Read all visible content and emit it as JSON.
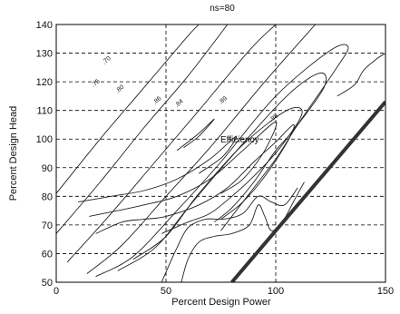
{
  "chart_data": {
    "type": "line",
    "title": "ns=80",
    "xlabel": "Percent Design Power",
    "ylabel": "Percent Design Head",
    "xlim": [
      0,
      150
    ],
    "ylim": [
      50,
      140
    ],
    "xticks": [
      "0",
      "50",
      "100",
      "150"
    ],
    "yticks": [
      "50",
      "60",
      "70",
      "80",
      "90",
      "100",
      "110",
      "120",
      "130",
      "140"
    ],
    "grid": true,
    "annotation": "Efficiency",
    "contour_labels": [
      {
        "text": ".70",
        "x": 22,
        "y": 126,
        "angle": -42
      },
      {
        "text": ".75",
        "x": 17,
        "y": 118,
        "angle": -42
      },
      {
        "text": ".80",
        "x": 28,
        "y": 116,
        "angle": -42
      },
      {
        "text": ".86",
        "x": 45,
        "y": 112,
        "angle": -42
      },
      {
        "text": ".84",
        "x": 55,
        "y": 111,
        "angle": -42
      },
      {
        "text": ".89",
        "x": 75,
        "y": 112,
        "angle": -42
      },
      {
        "text": ".98",
        "x": 98,
        "y": 106,
        "angle": -38
      }
    ],
    "limit_line": [
      [
        80,
        50
      ],
      [
        150,
        113
      ]
    ],
    "contours": [
      [
        [
          0,
          81
        ],
        [
          20,
          100
        ],
        [
          40,
          118
        ],
        [
          60,
          136
        ],
        [
          65,
          140
        ]
      ],
      [
        [
          0,
          67
        ],
        [
          20,
          85
        ],
        [
          40,
          104
        ],
        [
          60,
          122
        ],
        [
          78,
          140
        ]
      ],
      [
        [
          5,
          57
        ],
        [
          25,
          74
        ],
        [
          45,
          92
        ],
        [
          65,
          110
        ],
        [
          88,
          131
        ],
        [
          100,
          140
        ]
      ],
      [
        [
          14,
          53
        ],
        [
          30,
          63
        ],
        [
          50,
          80
        ],
        [
          70,
          97
        ],
        [
          95,
          120
        ],
        [
          118,
          140
        ]
      ],
      [
        [
          18,
          52
        ],
        [
          35,
          59
        ],
        [
          55,
          75
        ],
        [
          75,
          92
        ],
        [
          100,
          115
        ],
        [
          125,
          131
        ],
        [
          133,
          132
        ],
        [
          127,
          124
        ],
        [
          110,
          105
        ],
        [
          100,
          93
        ],
        [
          88,
          81
        ],
        [
          75,
          68
        ]
      ],
      [
        [
          28,
          54
        ],
        [
          45,
          62
        ],
        [
          60,
          76
        ],
        [
          80,
          94
        ],
        [
          105,
          115
        ],
        [
          120,
          123
        ],
        [
          122,
          118
        ],
        [
          108,
          103
        ],
        [
          100,
          96
        ],
        [
          90,
          85
        ],
        [
          80,
          76
        ],
        [
          72,
          71
        ]
      ],
      [
        [
          35,
          58
        ],
        [
          50,
          66
        ],
        [
          65,
          81
        ],
        [
          85,
          98
        ],
        [
          105,
          110
        ],
        [
          112,
          109
        ],
        [
          102,
          97
        ],
        [
          90,
          87
        ],
        [
          80,
          80
        ],
        [
          70,
          74
        ],
        [
          60,
          71
        ],
        [
          48,
          67
        ]
      ],
      [
        [
          18,
          67
        ],
        [
          30,
          71
        ],
        [
          40,
          72
        ],
        [
          50,
          73
        ],
        [
          65,
          77
        ],
        [
          78,
          83
        ],
        [
          90,
          92
        ],
        [
          100,
          99
        ],
        [
          108,
          105
        ],
        [
          106,
          100
        ],
        [
          96,
          88
        ],
        [
          85,
          78
        ],
        [
          75,
          72
        ]
      ],
      [
        [
          15,
          73
        ],
        [
          28,
          75
        ],
        [
          40,
          77
        ],
        [
          55,
          80
        ],
        [
          70,
          86
        ],
        [
          85,
          96
        ],
        [
          100,
          106
        ],
        [
          95,
          96
        ],
        [
          85,
          86
        ],
        [
          75,
          81
        ]
      ],
      [
        [
          10,
          78
        ],
        [
          25,
          80
        ],
        [
          40,
          82
        ],
        [
          55,
          86
        ],
        [
          70,
          93
        ],
        [
          82,
          101
        ],
        [
          76,
          94
        ],
        [
          65,
          88
        ]
      ],
      [
        [
          55,
          96
        ],
        [
          65,
          102
        ],
        [
          72,
          107
        ],
        [
          65,
          101
        ],
        [
          58,
          97
        ]
      ],
      [
        [
          57,
          50
        ],
        [
          60,
          58
        ],
        [
          65,
          64
        ],
        [
          72,
          66
        ],
        [
          80,
          67
        ],
        [
          88,
          70
        ],
        [
          92,
          77
        ],
        [
          95,
          73
        ],
        [
          98,
          68
        ],
        [
          103,
          71
        ],
        [
          108,
          78
        ],
        [
          113,
          85
        ]
      ],
      [
        [
          48,
          50
        ],
        [
          52,
          57
        ],
        [
          55,
          62
        ],
        [
          60,
          69
        ],
        [
          68,
          72
        ],
        [
          76,
          72
        ],
        [
          85,
          74
        ],
        [
          92,
          80
        ],
        [
          98,
          78
        ],
        [
          104,
          77
        ],
        [
          110,
          83
        ]
      ],
      [
        [
          128,
          115
        ],
        [
          136,
          119
        ],
        [
          140,
          124
        ],
        [
          146,
          128
        ],
        [
          150,
          130
        ]
      ]
    ]
  }
}
